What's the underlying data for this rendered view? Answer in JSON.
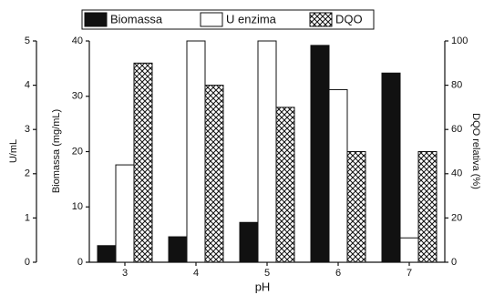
{
  "chart_data": {
    "type": "bar",
    "xlabel": "pH",
    "ylabel": "Biomassa (mg/mL)",
    "y2label": "DQO relativa (%)",
    "y3label": "U/mL",
    "categories": [
      "3",
      "4",
      "5",
      "6",
      "7"
    ],
    "series": [
      {
        "name": "Biomassa",
        "color": "#111111",
        "axis": "y",
        "values": [
          3.0,
          4.6,
          7.2,
          39.2,
          34.2
        ]
      },
      {
        "name": "U enzima",
        "color": "#ffffff",
        "axis": "y3",
        "values": [
          2.2,
          5.0,
          5.0,
          3.9,
          0.55
        ]
      },
      {
        "name": "DQO",
        "color": "crosshatch",
        "axis": "y2",
        "values": [
          90,
          80,
          70,
          50,
          50
        ]
      }
    ],
    "ylim": [
      0,
      40
    ],
    "yticks": [
      0,
      10,
      20,
      30,
      40
    ],
    "y2lim": [
      0,
      100
    ],
    "y2ticks": [
      0,
      20,
      40,
      60,
      80,
      100
    ],
    "y3lim": [
      0,
      5
    ],
    "y3ticks": [
      0,
      1,
      2,
      3,
      4,
      5
    ]
  }
}
